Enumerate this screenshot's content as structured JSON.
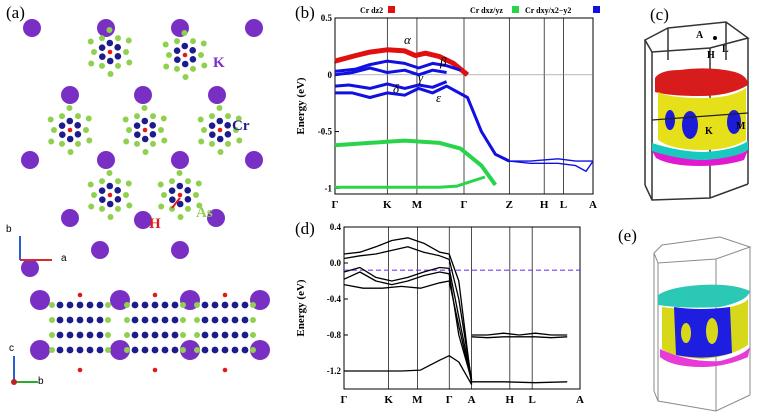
{
  "panels": {
    "a": "(a)",
    "b": "(b)",
    "c": "(c)",
    "d": "(d)",
    "e": "(e)"
  },
  "structure": {
    "atoms": {
      "k": "K",
      "cr": "Cr",
      "h": "H",
      "as": "As"
    },
    "axes_top": {
      "b": "b",
      "a": "a"
    },
    "axes_bottom": {
      "c": "c",
      "b": "b"
    },
    "colors": {
      "k": "#7a2fc4",
      "cr": "#1c1c8c",
      "h": "#e01a1a",
      "as": "#8fd14f"
    }
  },
  "fermi_top": {
    "labels": {
      "a": "A",
      "h": "H",
      "l": "L",
      "k": "K",
      "m": "M"
    },
    "colors": {
      "red": "#d81b1b",
      "yellow": "#e6e01a",
      "blue": "#1b1bd8",
      "cyan": "#19c9c0",
      "magenta": "#e01ad0"
    }
  },
  "fermi_bottom": {
    "colors": {
      "cyan": "#2bc8b6",
      "blue": "#1e1ee0",
      "yellow": "#d8d81a",
      "magenta": "#e83ad8"
    }
  },
  "chart_data": [
    {
      "id": "b",
      "type": "line",
      "title": "",
      "ylabel": "Energy (eV)",
      "xlabel": "",
      "ylim": [
        -1.05,
        0.5
      ],
      "yticks": [
        "0.5",
        "0",
        "-0.5",
        "-1"
      ],
      "xticks": [
        "Γ",
        "K",
        "M",
        "Γ",
        "Z",
        "H",
        "L",
        "A"
      ],
      "legend": [
        "Cr dz2",
        "Cr dxz/yz",
        "Cr dxy/x2−y2"
      ],
      "legend_colors": [
        "#e01010",
        "#2ad44a",
        "#1010e0"
      ],
      "band_labels": [
        "α",
        "β",
        "γ",
        "δ",
        "ε"
      ],
      "series": [
        {
          "name": "alpha",
          "x": [
            0,
            0.6,
            1.0,
            1.5,
            2.0,
            2.3,
            2.6,
            3.0,
            3.4,
            3.8
          ],
          "values": [
            0.12,
            0.17,
            0.2,
            0.22,
            0.21,
            0.17,
            0.19,
            0.16,
            0.1,
            0.0
          ]
        },
        {
          "name": "beta",
          "x": [
            0,
            0.6,
            1.0,
            1.5,
            2.0,
            2.4,
            2.8,
            3.2,
            3.6
          ],
          "values": [
            0.03,
            0.05,
            0.09,
            0.12,
            0.1,
            0.06,
            0.1,
            0.08,
            0.04
          ]
        },
        {
          "name": "gamma",
          "x": [
            0,
            0.5,
            1.0,
            1.5,
            2.0,
            2.4,
            2.8,
            3.2
          ],
          "values": [
            0.0,
            0.02,
            0.06,
            0.02,
            0.04,
            0.0,
            0.04,
            0.02
          ]
        },
        {
          "name": "delta",
          "x": [
            0,
            0.4,
            1.0,
            1.5,
            2.0,
            2.4,
            2.8,
            3.2
          ],
          "values": [
            -0.1,
            -0.09,
            -0.12,
            -0.08,
            -0.12,
            -0.09,
            -0.11,
            -0.06
          ]
        },
        {
          "name": "epsilon",
          "x": [
            0,
            0.5,
            1.0,
            1.5,
            2.0,
            2.4,
            2.8,
            3.2,
            3.8,
            4.2,
            4.6,
            5.0
          ],
          "values": [
            -0.16,
            -0.16,
            -0.2,
            -0.16,
            -0.18,
            -0.12,
            -0.16,
            -0.1,
            -0.2,
            -0.5,
            -0.7,
            -0.76
          ]
        },
        {
          "name": "flat-green",
          "x": [
            0,
            1.0,
            2.0,
            3.0,
            3.6,
            4.2,
            4.6
          ],
          "values": [
            -0.62,
            -0.6,
            -0.58,
            -0.6,
            -0.65,
            -0.8,
            -0.97
          ]
        },
        {
          "name": "bottom-green",
          "x": [
            0,
            1.0,
            2.0,
            3.0,
            3.5,
            3.9,
            4.3
          ],
          "values": [
            -0.99,
            -0.99,
            -0.99,
            -0.99,
            -0.98,
            -0.94,
            -0.9
          ]
        },
        {
          "name": "z-a-blue",
          "x": [
            5.0,
            5.6,
            6.4,
            6.9,
            7.4
          ],
          "values": [
            -0.76,
            -0.76,
            -0.74,
            -0.76,
            -0.76
          ]
        },
        {
          "name": "z-a-blue-lower",
          "x": [
            5.0,
            5.6,
            6.4,
            6.9,
            7.2,
            7.4
          ],
          "values": [
            -0.76,
            -0.78,
            -0.78,
            -0.8,
            -0.85,
            -0.76
          ]
        }
      ]
    },
    {
      "id": "d",
      "type": "line",
      "title": "",
      "ylabel": "Energy (eV)",
      "xlabel": "",
      "ylim": [
        -1.4,
        0.4
      ],
      "yticks": [
        "0.4",
        "0.0",
        "-0.4",
        "-0.8",
        "-1.2"
      ],
      "xticks": [
        "Γ",
        "K",
        "M",
        "Γ",
        "A",
        "H",
        "L",
        "A"
      ],
      "fermi_level": -0.08,
      "series": [
        {
          "name": "b1",
          "x": [
            0,
            0.5,
            1.0,
            1.5,
            2.0,
            2.5,
            3.0,
            3.3,
            3.6,
            4.0
          ],
          "values": [
            0.1,
            0.12,
            0.18,
            0.25,
            0.28,
            0.22,
            0.12,
            0.1,
            -0.2,
            -1.35
          ]
        },
        {
          "name": "b2",
          "x": [
            0,
            0.5,
            1.0,
            1.5,
            2.0,
            2.5,
            3.0,
            3.3,
            3.6,
            4.0
          ],
          "values": [
            0.05,
            0.08,
            0.1,
            0.14,
            0.18,
            0.12,
            0.08,
            0.04,
            -0.4,
            -1.3
          ]
        },
        {
          "name": "b3",
          "x": [
            0,
            0.5,
            1.0,
            1.5,
            2.0,
            2.5,
            3.0,
            3.3,
            3.6,
            4.0
          ],
          "values": [
            -0.1,
            -0.05,
            -0.16,
            -0.2,
            -0.16,
            -0.1,
            -0.05,
            -0.06,
            -0.6,
            -1.3
          ]
        },
        {
          "name": "b4",
          "x": [
            0,
            0.5,
            1.0,
            1.5,
            2.0,
            2.5,
            3.0,
            3.3,
            3.6,
            4.0
          ],
          "values": [
            -0.18,
            -0.1,
            -0.2,
            -0.24,
            -0.2,
            -0.14,
            -0.1,
            -0.12,
            -0.8,
            -1.3
          ]
        },
        {
          "name": "b5",
          "x": [
            0,
            0.6,
            1.2,
            1.8,
            2.4,
            3.0,
            3.3,
            3.6,
            4.0
          ],
          "values": [
            -0.24,
            -0.28,
            -0.28,
            -0.26,
            -0.28,
            -0.22,
            -0.2,
            -0.7,
            -1.32
          ]
        },
        {
          "name": "b6",
          "x": [
            0,
            0.6,
            1.2,
            1.8,
            2.4,
            3.0,
            3.3,
            3.6,
            4.0
          ],
          "values": [
            -1.2,
            -1.2,
            -1.2,
            -1.2,
            -1.19,
            -1.08,
            -1.03,
            -1.1,
            -1.35
          ]
        },
        {
          "name": "ha1",
          "x": [
            4.0,
            4.5,
            5.0,
            5.5,
            6.0,
            6.5,
            7.0
          ],
          "values": [
            -0.8,
            -0.8,
            -0.78,
            -0.8,
            -0.78,
            -0.8,
            -0.8
          ]
        },
        {
          "name": "ha2",
          "x": [
            4.0,
            4.5,
            5.0,
            5.5,
            6.0,
            6.5,
            7.0
          ],
          "values": [
            -0.82,
            -0.83,
            -0.82,
            -0.82,
            -0.82,
            -0.83,
            -0.82
          ]
        },
        {
          "name": "ha3",
          "x": [
            4.0,
            5.0,
            6.0,
            7.0
          ],
          "values": [
            -1.32,
            -1.32,
            -1.33,
            -1.32
          ]
        }
      ]
    }
  ]
}
